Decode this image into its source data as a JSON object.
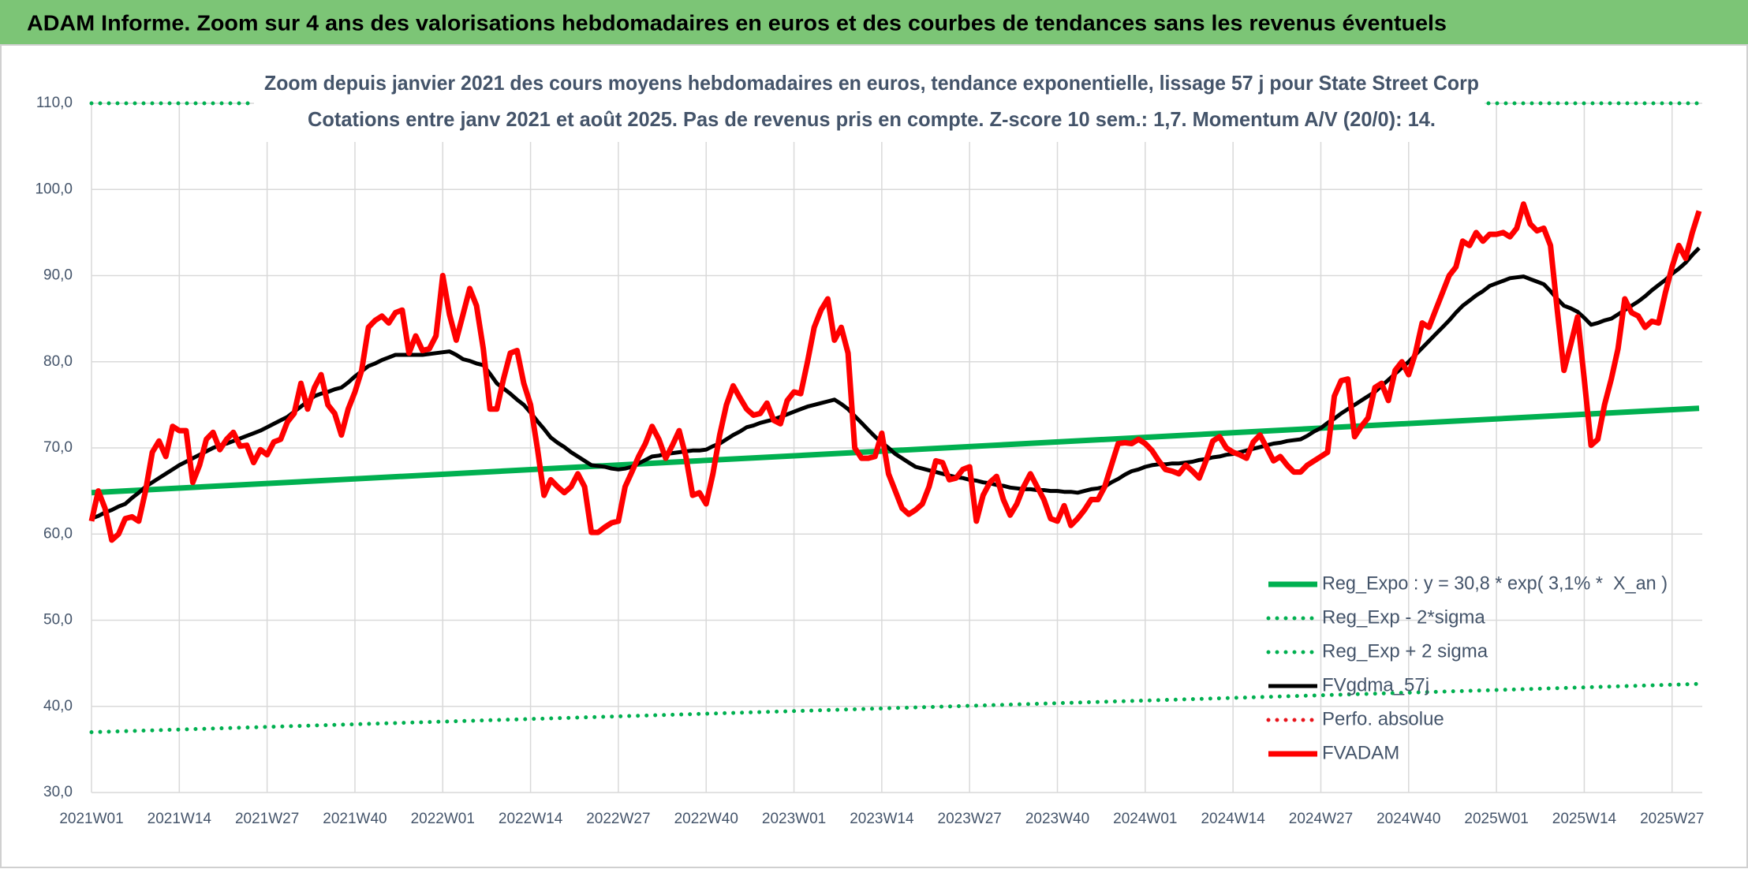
{
  "chart_data": {
    "type": "line",
    "title": "ADAM Informe. Zoom sur 4 ans des valorisations hebdomadaires en euros et des courbes de tendances sans les revenus éventuels",
    "subtitles": [
      "Zoom depuis janvier 2021 des cours moyens hebdomadaires en euros, tendance exponentielle, lissage 57 j pour State Street Corp",
      "Cotations entre janv 2021 et août 2025. Pas de revenus pris en compte. Z-score 10 sem.: 1,7. Momentum A/V (20/0): 14."
    ],
    "categories": [
      "2021W01",
      null,
      null,
      null,
      null,
      null,
      null,
      null,
      null,
      null,
      null,
      null,
      null,
      "2021W14",
      null,
      null,
      null,
      null,
      null,
      null,
      null,
      null,
      null,
      null,
      null,
      null,
      "2021W27",
      null,
      null,
      null,
      null,
      null,
      null,
      null,
      null,
      null,
      null,
      null,
      null,
      "2021W40",
      null,
      null,
      null,
      null,
      null,
      null,
      null,
      null,
      null,
      null,
      null,
      null,
      "2022W01",
      null,
      null,
      null,
      null,
      null,
      null,
      null,
      null,
      null,
      null,
      null,
      null,
      "2022W14",
      null,
      null,
      null,
      null,
      null,
      null,
      null,
      null,
      null,
      null,
      null,
      null,
      "2022W27",
      null,
      null,
      null,
      null,
      null,
      null,
      null,
      null,
      null,
      null,
      null,
      null,
      "2022W40",
      null,
      null,
      null,
      null,
      null,
      null,
      null,
      null,
      null,
      null,
      null,
      null,
      "2023W01",
      null,
      null,
      null,
      null,
      null,
      null,
      null,
      null,
      null,
      null,
      null,
      null,
      "2023W14",
      null,
      null,
      null,
      null,
      null,
      null,
      null,
      null,
      null,
      null,
      null,
      null,
      "2023W27",
      null,
      null,
      null,
      null,
      null,
      null,
      null,
      null,
      null,
      null,
      null,
      null,
      "2023W40",
      null,
      null,
      null,
      null,
      null,
      null,
      null,
      null,
      null,
      null,
      null,
      null,
      "2024W01",
      null,
      null,
      null,
      null,
      null,
      null,
      null,
      null,
      null,
      null,
      null,
      null,
      "2024W14",
      null,
      null,
      null,
      null,
      null,
      null,
      null,
      null,
      null,
      null,
      null,
      null,
      "2024W27",
      null,
      null,
      null,
      null,
      null,
      null,
      null,
      null,
      null,
      null,
      null,
      null,
      "2024W40",
      null,
      null,
      null,
      null,
      null,
      null,
      null,
      null,
      null,
      null,
      null,
      null,
      "2025W01",
      null,
      null,
      null,
      null,
      null,
      null,
      null,
      null,
      null,
      null,
      null,
      null,
      "2025W14",
      null,
      null,
      null,
      null,
      null,
      null,
      null,
      null,
      null,
      null,
      null,
      null,
      "2025W27",
      null,
      null,
      null,
      null
    ],
    "ylim": [
      30,
      110
    ],
    "yticks": [
      {
        "value": 30,
        "label": "30,0"
      },
      {
        "value": 40,
        "label": "40,0"
      },
      {
        "value": 50,
        "label": "50,0"
      },
      {
        "value": 60,
        "label": "60,0"
      },
      {
        "value": 70,
        "label": "70,0"
      },
      {
        "value": 80,
        "label": "80,0"
      },
      {
        "value": 90,
        "label": "90,0"
      },
      {
        "value": 100,
        "label": "100,0"
      },
      {
        "value": 110,
        "label": "110,0"
      }
    ],
    "grid": true,
    "legend": "lower right",
    "series": [
      {
        "name": "Reg_Expo : y = 30,8 * exp( 3,1% *  X_an )",
        "color": "#00b050",
        "style": "solid",
        "x": [
          0,
          238
        ],
        "values": [
          64.8,
          74.6
        ]
      },
      {
        "name": "Reg_Exp - 2*sigma",
        "color": "#00b050",
        "style": "dotted",
        "x": [
          0,
          238
        ],
        "values": [
          37.0,
          42.6
        ]
      },
      {
        "name": "Reg_Exp + 2 sigma",
        "color": "#00b050",
        "style": "dotted",
        "x": [
          0,
          238
        ],
        "values": [
          110,
          110
        ]
      },
      {
        "name": "FVgdma_57j",
        "color": "#000000",
        "style": "solid",
        "values": [
          61.8,
          62.1,
          62.5,
          62.8,
          63.2,
          63.5,
          64.2,
          64.8,
          65.5,
          66.0,
          66.5,
          67.0,
          67.5,
          68.0,
          68.4,
          68.8,
          69.2,
          69.6,
          70.0,
          70.3,
          70.5,
          70.8,
          71.1,
          71.4,
          71.7,
          72.0,
          72.4,
          72.8,
          73.2,
          73.6,
          74.2,
          74.8,
          75.4,
          76.0,
          76.3,
          76.5,
          76.8,
          77.0,
          77.6,
          78.3,
          78.9,
          79.5,
          79.8,
          80.2,
          80.5,
          80.8,
          80.8,
          80.8,
          80.8,
          80.8,
          80.9,
          81.0,
          81.1,
          81.2,
          80.8,
          80.3,
          80.1,
          79.8,
          79.6,
          78.6,
          77.5,
          76.9,
          76.3,
          75.6,
          75.0,
          74.1,
          73.1,
          72.2,
          71.2,
          70.6,
          70.1,
          69.5,
          69.0,
          68.5,
          68.0,
          67.9,
          67.8,
          67.6,
          67.5,
          67.6,
          67.8,
          68.2,
          68.6,
          69.0,
          69.1,
          69.3,
          69.4,
          69.5,
          69.6,
          69.7,
          69.7,
          69.8,
          70.2,
          70.5,
          71.0,
          71.5,
          71.9,
          72.4,
          72.6,
          72.9,
          73.1,
          73.3,
          73.6,
          73.9,
          74.2,
          74.5,
          74.8,
          75.0,
          75.2,
          75.4,
          75.6,
          75.1,
          74.5,
          73.7,
          72.9,
          72.1,
          71.3,
          70.6,
          70.0,
          69.3,
          68.8,
          68.3,
          67.8,
          67.6,
          67.4,
          67.2,
          67.0,
          66.8,
          66.6,
          66.5,
          66.3,
          66.2,
          66.0,
          65.9,
          65.7,
          65.6,
          65.4,
          65.3,
          65.2,
          65.2,
          65.1,
          65.1,
          65.0,
          65.0,
          64.9,
          64.9,
          64.8,
          65.0,
          65.2,
          65.3,
          65.5,
          66.0,
          66.4,
          66.9,
          67.3,
          67.5,
          67.8,
          68.0,
          68.1,
          68.1,
          68.2,
          68.2,
          68.3,
          68.4,
          68.6,
          68.7,
          68.9,
          69.0,
          69.2,
          69.3,
          69.5,
          69.7,
          69.9,
          70.1,
          70.3,
          70.5,
          70.6,
          70.8,
          70.9,
          71.0,
          71.4,
          71.9,
          72.3,
          72.9,
          73.4,
          74.0,
          74.5,
          75.0,
          75.5,
          76.0,
          76.5,
          77.2,
          77.9,
          78.6,
          79.3,
          80.0,
          80.8,
          81.6,
          82.4,
          83.2,
          84.0,
          84.8,
          85.7,
          86.5,
          87.1,
          87.7,
          88.2,
          88.8,
          89.1,
          89.4,
          89.7,
          89.8,
          89.9,
          89.6,
          89.3,
          89.0,
          88.2,
          87.3,
          86.5,
          86.2,
          85.8,
          85.1,
          84.3,
          84.5,
          84.8,
          85.0,
          85.5,
          86.0,
          86.5,
          87.0,
          87.6,
          88.3,
          88.9,
          89.5,
          90.2,
          90.8,
          91.5,
          92.4,
          93.2
        ]
      },
      {
        "name": "Perfo. absolue",
        "color": "#e8141b",
        "style": "dotted"
      },
      {
        "name": "FVADAM",
        "color": "#ff0000",
        "style": "solid",
        "values": [
          61.5,
          65,
          63,
          59.3,
          60,
          61.8,
          62,
          61.5,
          65,
          69.5,
          70.8,
          69,
          72.5,
          72,
          72,
          66,
          68,
          71,
          71.8,
          69.8,
          71,
          71.8,
          70.2,
          70.3,
          68.3,
          69.8,
          69.2,
          70.7,
          71,
          73,
          74,
          77.5,
          74.5,
          77,
          78.5,
          75,
          74,
          71.5,
          74.5,
          76.5,
          79,
          84,
          84.8,
          85.3,
          84.5,
          85.7,
          86,
          81,
          83,
          81.3,
          81.5,
          83,
          90,
          85.5,
          82.5,
          85.5,
          88.5,
          86.5,
          81.5,
          74.5,
          74.5,
          78,
          81,
          81.3,
          77.5,
          75,
          70,
          64.5,
          66.3,
          65.5,
          64.8,
          65.5,
          67,
          65.5,
          60.2,
          60.2,
          60.8,
          61.3,
          61.5,
          65.5,
          67.2,
          69,
          70.5,
          72.5,
          71,
          68.8,
          70.3,
          72,
          69,
          64.5,
          64.8,
          63.5,
          67,
          71.5,
          75,
          77.2,
          75.8,
          74.5,
          73.8,
          74,
          75.2,
          73.2,
          72.8,
          75.5,
          76.5,
          76.3,
          80,
          84,
          86,
          87.3,
          82.5,
          84,
          81,
          70,
          68.8,
          68.8,
          69,
          71.7,
          67,
          65,
          63,
          62.3,
          62.8,
          63.5,
          65.5,
          68.5,
          68.3,
          66.3,
          66.5,
          67.5,
          67.8,
          61.5,
          64.5,
          66,
          66.7,
          64,
          62.2,
          63.5,
          65.5,
          67,
          65.5,
          64,
          61.8,
          61.5,
          63.3,
          61,
          61.8,
          62.8,
          64,
          64,
          65.5,
          68,
          70.5,
          70.6,
          70.5,
          71,
          70.5,
          69.7,
          68.5,
          67.5,
          67.3,
          67,
          68,
          67.3,
          66.5,
          68.5,
          70.8,
          71.3,
          70,
          69.5,
          69.2,
          68.8,
          70.7,
          71.5,
          70,
          68.5,
          69,
          68,
          67.2,
          67.2,
          68,
          68.5,
          69,
          69.5,
          76,
          77.8,
          78,
          71.3,
          72.5,
          73.5,
          77,
          77.5,
          75.5,
          79,
          80,
          78.5,
          81,
          84.5,
          84,
          86,
          88,
          90,
          91,
          94,
          93.5,
          95,
          94,
          94.8,
          94.8,
          95,
          94.5,
          95.5,
          98.3,
          96,
          95.2,
          95.5,
          93.5,
          86,
          79,
          82,
          85.2,
          78,
          70.3,
          71,
          75,
          78,
          81.5,
          87.3,
          85.7,
          85.3,
          84,
          84.7,
          84.5,
          88,
          91,
          93.5,
          92,
          95,
          97.5
        ]
      }
    ]
  }
}
